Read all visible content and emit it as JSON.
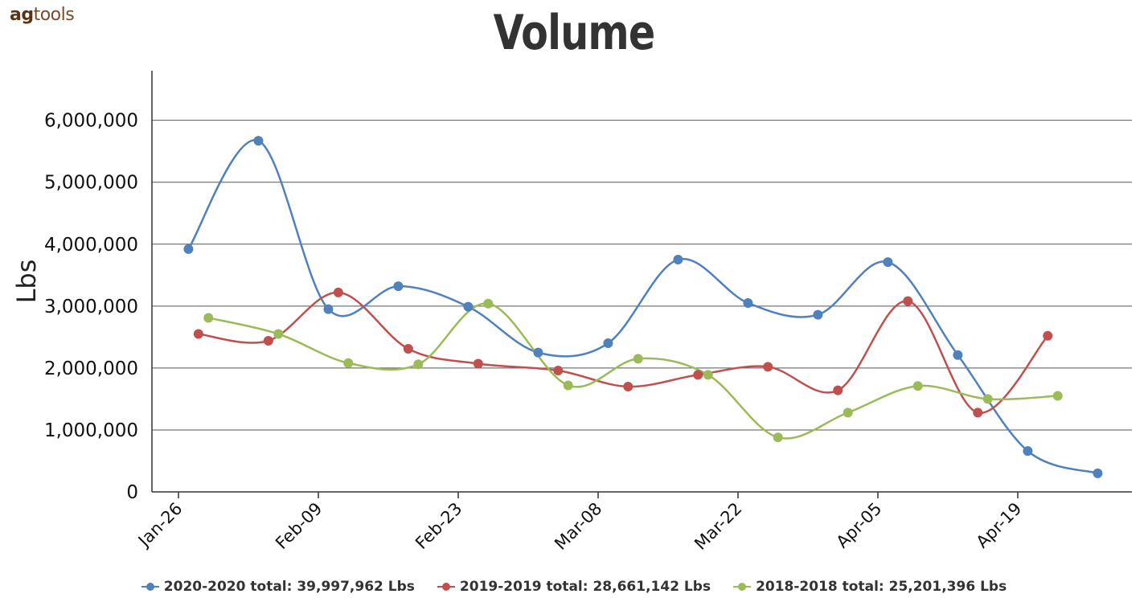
{
  "brand": {
    "bold": "ag",
    "rest": "tools"
  },
  "chart_data": {
    "type": "line",
    "title": "Volume",
    "ylabel": "Lbs",
    "xlabel": "",
    "ylim": [
      0,
      6800000
    ],
    "yticks": [
      0,
      1000000,
      2000000,
      3000000,
      4000000,
      5000000,
      6000000
    ],
    "ytick_labels": [
      "0",
      "1,000,000",
      "2,000,000",
      "3,000,000",
      "4,000,000",
      "5,000,000",
      "6,000,000"
    ],
    "x_axis": {
      "type": "date",
      "min": "2020-01-26",
      "max": "2020-04-30",
      "ticks": [
        "2020-01-26",
        "2020-02-09",
        "2020-02-23",
        "2020-03-08",
        "2020-03-22",
        "2020-04-05",
        "2020-04-19"
      ],
      "tick_labels": [
        "Jan-26",
        "Feb-09",
        "Feb-23",
        "Mar-08",
        "Mar-22",
        "Apr-05",
        "Apr-19"
      ]
    },
    "grid": true,
    "legend": "bottom",
    "series": [
      {
        "name": "2020-2020 total: 39,997,962 Lbs",
        "color": "#4f81bd",
        "x": [
          "2020-01-27",
          "2020-02-03",
          "2020-02-10",
          "2020-02-17",
          "2020-02-24",
          "2020-03-02",
          "2020-03-09",
          "2020-03-16",
          "2020-03-23",
          "2020-03-30",
          "2020-04-06",
          "2020-04-13",
          "2020-04-20",
          "2020-04-27"
        ],
        "values": [
          3920000,
          5670000,
          2950000,
          3320000,
          2990000,
          2250000,
          2400000,
          3750000,
          3050000,
          2860000,
          3710000,
          2210000,
          660000,
          300000
        ]
      },
      {
        "name": "2019-2019 total: 28,661,142 Lbs",
        "color": "#c0504d",
        "x": [
          "2020-01-28",
          "2020-02-04",
          "2020-02-11",
          "2020-02-18",
          "2020-02-25",
          "2020-03-04",
          "2020-03-11",
          "2020-03-18",
          "2020-03-25",
          "2020-04-01",
          "2020-04-08",
          "2020-04-15",
          "2020-04-22"
        ],
        "values": [
          2550000,
          2440000,
          3220000,
          2310000,
          2070000,
          1960000,
          1700000,
          1890000,
          2020000,
          1640000,
          3080000,
          1280000,
          2520000
        ]
      },
      {
        "name": "2018-2018 total: 25,201,396 Lbs",
        "color": "#9bbb59",
        "x": [
          "2020-01-29",
          "2020-02-05",
          "2020-02-12",
          "2020-02-19",
          "2020-02-26",
          "2020-03-05",
          "2020-03-12",
          "2020-03-19",
          "2020-03-26",
          "2020-04-02",
          "2020-04-09",
          "2020-04-16",
          "2020-04-23"
        ],
        "values": [
          2810000,
          2550000,
          2080000,
          2060000,
          3040000,
          1720000,
          2150000,
          1890000,
          880000,
          1280000,
          1710000,
          1500000,
          1550000
        ]
      }
    ]
  }
}
